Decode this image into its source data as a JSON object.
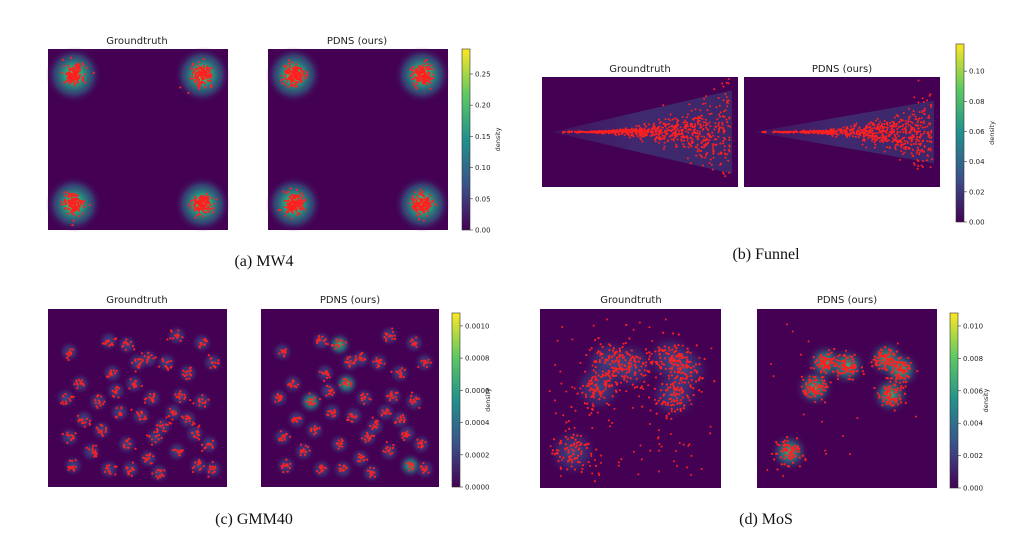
{
  "figure": {
    "colormap": {
      "low": "#440154",
      "mid": "#21918c",
      "high": "#fde725"
    },
    "point_color": "#ff2020"
  },
  "chart_data": [
    {
      "id": "mw4",
      "type": "heatmap",
      "caption": "(a) MW4",
      "panels": [
        {
          "title": "Groundtruth",
          "centers": [
            [
              -1,
              1
            ],
            [
              1,
              1
            ],
            [
              -1,
              -1
            ],
            [
              1,
              -1
            ]
          ],
          "spread": 0.08,
          "points_per_mode": 150
        },
        {
          "title": "PDNS (ours)",
          "centers": [
            [
              -1,
              1
            ],
            [
              1,
              1
            ],
            [
              -1,
              -1
            ],
            [
              1,
              -1
            ]
          ],
          "spread": 0.08,
          "points_per_mode": 150
        }
      ],
      "xlim": [
        -1.4,
        1.4
      ],
      "ylim": [
        -1.4,
        1.4
      ],
      "colorbar": {
        "label": "density",
        "range": [
          0,
          0.29
        ],
        "ticks": [
          "0.00",
          "0.05",
          "0.10",
          "0.15",
          "0.20",
          "0.25"
        ],
        "tick_values": [
          0,
          0.05,
          0.1,
          0.15,
          0.2,
          0.25
        ]
      }
    },
    {
      "id": "funnel",
      "type": "heatmap",
      "caption": "(b) Funnel",
      "panels": [
        {
          "title": "Groundtruth",
          "points": 700,
          "width_scale": 1.0
        },
        {
          "title": "PDNS (ours)",
          "points": 700,
          "width_scale": 0.75
        }
      ],
      "colorbar": {
        "label": "density",
        "range": [
          0,
          0.118
        ],
        "ticks": [
          "0.00",
          "0.02",
          "0.04",
          "0.06",
          "0.08",
          "0.10"
        ],
        "tick_values": [
          0,
          0.02,
          0.04,
          0.06,
          0.08,
          0.1
        ]
      }
    },
    {
      "id": "gmm40",
      "type": "heatmap",
      "caption": "(c) GMM40",
      "panels": [
        {
          "title": "Groundtruth",
          "spread": 0.018,
          "points_per_mode": 14
        },
        {
          "title": "PDNS (ours)",
          "spread": 0.015,
          "points_per_mode": 14
        }
      ],
      "centers": [
        [
          0.12,
          0.24
        ],
        [
          0.34,
          0.18
        ],
        [
          0.44,
          0.2
        ],
        [
          0.56,
          0.28
        ],
        [
          0.72,
          0.15
        ],
        [
          0.86,
          0.19
        ],
        [
          0.92,
          0.3
        ],
        [
          0.78,
          0.36
        ],
        [
          0.36,
          0.36
        ],
        [
          0.48,
          0.42
        ],
        [
          0.58,
          0.5
        ],
        [
          0.74,
          0.49
        ],
        [
          0.86,
          0.52
        ],
        [
          0.28,
          0.52
        ],
        [
          0.2,
          0.62
        ],
        [
          0.4,
          0.58
        ],
        [
          0.52,
          0.6
        ],
        [
          0.64,
          0.66
        ],
        [
          0.78,
          0.62
        ],
        [
          0.12,
          0.72
        ],
        [
          0.24,
          0.8
        ],
        [
          0.44,
          0.76
        ],
        [
          0.56,
          0.84
        ],
        [
          0.72,
          0.8
        ],
        [
          0.84,
          0.88
        ],
        [
          0.14,
          0.88
        ],
        [
          0.34,
          0.9
        ],
        [
          0.62,
          0.92
        ],
        [
          0.9,
          0.76
        ],
        [
          0.3,
          0.68
        ],
        [
          0.66,
          0.3
        ],
        [
          0.5,
          0.3
        ],
        [
          0.18,
          0.42
        ],
        [
          0.82,
          0.7
        ],
        [
          0.46,
          0.9
        ],
        [
          0.92,
          0.9
        ],
        [
          0.1,
          0.5
        ],
        [
          0.6,
          0.72
        ],
        [
          0.38,
          0.46
        ],
        [
          0.7,
          0.58
        ]
      ],
      "colorbar": {
        "label": "density",
        "range": [
          0,
          0.00108
        ],
        "ticks": [
          "0.0000",
          "0.0002",
          "0.0004",
          "0.0006",
          "0.0008",
          "0.0010"
        ],
        "tick_values": [
          0,
          0.0002,
          0.0004,
          0.0006,
          0.0008,
          0.001
        ]
      }
    },
    {
      "id": "mos",
      "type": "heatmap",
      "caption": "(d) MoS",
      "panels": [
        {
          "title": "Groundtruth",
          "spread": 0.055,
          "points_per_mode": 80,
          "outliers": 120
        },
        {
          "title": "PDNS (ours)",
          "spread": 0.035,
          "points_per_mode": 80,
          "outliers": 20
        }
      ],
      "centers": [
        [
          0.38,
          0.3
        ],
        [
          0.5,
          0.32
        ],
        [
          0.72,
          0.28
        ],
        [
          0.8,
          0.34
        ],
        [
          0.32,
          0.44
        ],
        [
          0.74,
          0.48
        ],
        [
          0.18,
          0.8
        ]
      ],
      "colorbar": {
        "label": "density",
        "range": [
          0,
          0.0108
        ],
        "ticks": [
          "0.000",
          "0.002",
          "0.004",
          "0.006",
          "0.008",
          "0.010"
        ],
        "tick_values": [
          0,
          0.002,
          0.004,
          0.006,
          0.008,
          0.01
        ]
      }
    }
  ]
}
